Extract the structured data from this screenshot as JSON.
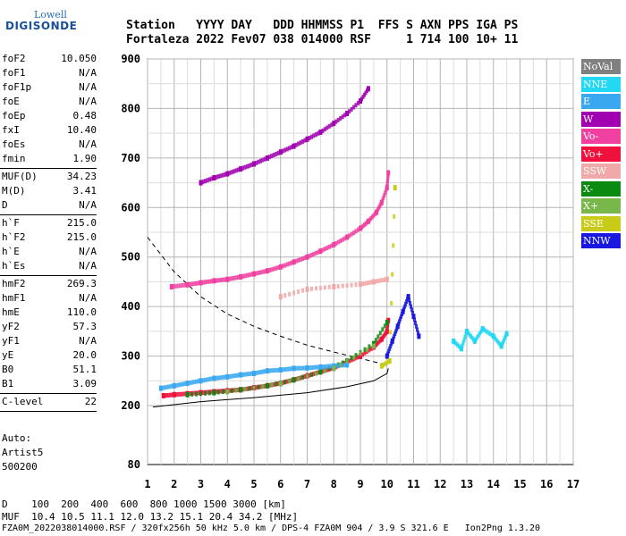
{
  "logo": {
    "top": "Lowell",
    "main": "DIGISONDE"
  },
  "header": {
    "line1": "Station   YYYY DAY   DDD HHMMSS P1  FFS S AXN PPS IGA PS",
    "line2": "Fortaleza 2022 Fev07 038 014000 RSF     1 714 100 10+ 11"
  },
  "params": [
    {
      "group": [
        {
          "k": "foF2",
          "v": "10.050"
        },
        {
          "k": "foF1",
          "v": "N/A"
        },
        {
          "k": "foF1p",
          "v": "N/A"
        },
        {
          "k": "foE",
          "v": "N/A"
        },
        {
          "k": "foEp",
          "v": "0.48"
        },
        {
          "k": "fxI",
          "v": "10.40"
        },
        {
          "k": "foEs",
          "v": "N/A"
        },
        {
          "k": "fmin",
          "v": "1.90"
        }
      ]
    },
    {
      "group": [
        {
          "k": "MUF(D)",
          "v": "34.23"
        },
        {
          "k": "M(D)",
          "v": "3.41"
        },
        {
          "k": "D",
          "v": "N/A"
        }
      ]
    },
    {
      "group": [
        {
          "k": "h`F",
          "v": "215.0"
        },
        {
          "k": "h`F2",
          "v": "215.0"
        },
        {
          "k": "h`E",
          "v": "N/A"
        },
        {
          "k": "h`Es",
          "v": "N/A"
        }
      ]
    },
    {
      "group": [
        {
          "k": "hmF2",
          "v": "269.3"
        },
        {
          "k": "hmF1",
          "v": "N/A"
        },
        {
          "k": "hmE",
          "v": "110.0"
        },
        {
          "k": "yF2",
          "v": "57.3"
        },
        {
          "k": "yF1",
          "v": "N/A"
        },
        {
          "k": "yE",
          "v": "20.0"
        },
        {
          "k": "B0",
          "v": "51.1"
        },
        {
          "k": "B1",
          "v": "3.09"
        }
      ]
    },
    {
      "group": [
        {
          "k": "C-level",
          "v": "22"
        }
      ]
    }
  ],
  "autoscale": {
    "line1": "Auto:",
    "line2": "Artist5",
    "line3": "500200"
  },
  "footer": {
    "line1": "D    100  200  400  600  800 1000 1500 3000 [km]",
    "line2": "MUF  10.4 10.5 11.1 12.0 13.2 15.1 20.4 34.2 [MHz]",
    "line3": "FZA0M_2022038014000.RSF / 320fx256h 50 kHz 5.0 km / DPS-4 FZA0M 904 / 3.9 S 321.6 E   Ion2Png 1.3.20"
  },
  "legend": [
    {
      "label": "NoVal",
      "color": "#808080"
    },
    {
      "label": "NNE",
      "color": "#22d8f2"
    },
    {
      "label": "E",
      "color": "#3aa8f0"
    },
    {
      "label": "W",
      "color": "#a000b0"
    },
    {
      "label": "Vo-",
      "color": "#f040a0"
    },
    {
      "label": "Vo+",
      "color": "#f0103c"
    },
    {
      "label": "SSW",
      "color": "#f0a8a8"
    },
    {
      "label": "X-",
      "color": "#0a8a10"
    },
    {
      "label": "X+",
      "color": "#78b84a"
    },
    {
      "label": "SSE",
      "color": "#c8cc18"
    },
    {
      "label": "NNW",
      "color": "#1818e0"
    }
  ],
  "chart_data": {
    "type": "scatter",
    "xlim": [
      1,
      17
    ],
    "ylim": [
      80,
      900
    ],
    "xticks": [
      "1",
      "2",
      "3",
      "4",
      "5",
      "6",
      "7",
      "8",
      "9",
      "10",
      "11",
      "12",
      "13",
      "14",
      "15",
      "16",
      "17"
    ],
    "yticks": [
      "80",
      "200",
      "300",
      "400",
      "500",
      "600",
      "700",
      "800",
      "900"
    ],
    "grid": true,
    "series": [
      {
        "name": "Vo+",
        "color": "#f0103c",
        "x": [
          1.6,
          2.0,
          2.5,
          3.0,
          3.5,
          4.0,
          4.5,
          5.0,
          5.5,
          6.0,
          6.5,
          7.0,
          7.5,
          8.0,
          8.5,
          9.0,
          9.5,
          9.8,
          10.0,
          10.05
        ],
        "y": [
          220,
          222,
          224,
          226,
          228,
          230,
          232,
          236,
          240,
          245,
          252,
          260,
          268,
          276,
          288,
          300,
          318,
          334,
          350,
          372
        ]
      },
      {
        "name": "Vo-",
        "color": "#f040a0",
        "x": [
          1.9,
          2.5,
          3.0,
          3.5,
          4.0,
          4.5,
          5.0,
          5.5,
          6.0,
          6.5,
          7.0,
          7.5,
          8.0,
          8.5,
          9.0,
          9.3,
          9.6,
          9.8,
          10.0,
          10.05
        ],
        "y": [
          440,
          444,
          448,
          452,
          455,
          460,
          466,
          472,
          480,
          490,
          500,
          512,
          525,
          540,
          558,
          572,
          590,
          610,
          640,
          670
        ]
      },
      {
        "name": "W",
        "color": "#a000b0",
        "x": [
          3.0,
          3.5,
          4.0,
          4.5,
          5.0,
          5.5,
          6.0,
          6.5,
          7.0,
          7.5,
          8.0,
          8.5,
          9.0,
          9.3
        ],
        "y": [
          650,
          660,
          668,
          678,
          688,
          700,
          712,
          724,
          738,
          752,
          770,
          790,
          815,
          840
        ]
      },
      {
        "name": "X-",
        "color": "#0a8a10",
        "x": [
          2.5,
          3.5,
          4.5,
          5.5,
          6.5,
          7.5,
          8.5,
          9.5,
          10.0
        ],
        "y": [
          222,
          226,
          232,
          240,
          252,
          268,
          290,
          325,
          368
        ]
      },
      {
        "name": "E",
        "color": "#3aa8f0",
        "x": [
          1.5,
          2.0,
          2.5,
          3.0,
          3.5,
          4.0,
          4.5,
          5.0,
          5.5,
          6.0,
          6.5,
          7.0,
          7.5,
          8.0,
          8.5
        ],
        "y": [
          235,
          240,
          245,
          250,
          255,
          258,
          262,
          265,
          270,
          272,
          275,
          276,
          278,
          280,
          282
        ]
      },
      {
        "name": "NNE",
        "color": "#22d8f2",
        "x": [
          12.5,
          12.8,
          13.0,
          13.3,
          13.6,
          14.0,
          14.3,
          14.5
        ],
        "y": [
          330,
          315,
          350,
          330,
          355,
          340,
          320,
          345
        ]
      },
      {
        "name": "NNW",
        "color": "#1818e0",
        "x": [
          10.0,
          10.2,
          10.4,
          10.6,
          10.8,
          11.0,
          11.2
        ],
        "y": [
          300,
          330,
          360,
          390,
          420,
          380,
          340
        ]
      },
      {
        "name": "SSW",
        "color": "#f0a8a8",
        "x": [
          6.0,
          7.0,
          8.0,
          9.0,
          9.5,
          10.0
        ],
        "y": [
          420,
          435,
          440,
          445,
          450,
          455
        ]
      },
      {
        "name": "SSE",
        "color": "#c8cc18",
        "x": [
          9.8,
          10.1,
          10.3
        ],
        "y": [
          280,
          290,
          640
        ]
      },
      {
        "name": "X+",
        "color": "#78b84a",
        "x": [
          4.0,
          6.0,
          8.0,
          9.5
        ],
        "y": [
          228,
          244,
          275,
          320
        ]
      }
    ]
  }
}
